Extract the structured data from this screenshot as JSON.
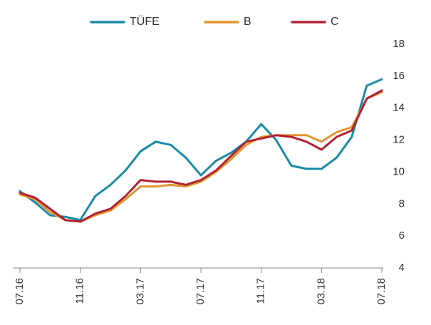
{
  "chart_data": {
    "type": "line",
    "title": "",
    "xlabel": "",
    "ylabel": "",
    "ylim": [
      4,
      18
    ],
    "y_ticks": [
      4,
      6,
      8,
      10,
      12,
      14,
      16,
      18
    ],
    "y_axis_side": "right",
    "x_tick_labels": [
      "07.16",
      "11.16",
      "03.17",
      "07.17",
      "11.17",
      "03.18",
      "07.18"
    ],
    "x": [
      "07.16",
      "08.16",
      "09.16",
      "10.16",
      "11.16",
      "12.16",
      "01.17",
      "02.17",
      "03.17",
      "04.17",
      "05.17",
      "06.17",
      "07.17",
      "08.17",
      "09.17",
      "10.17",
      "11.17",
      "12.17",
      "01.18",
      "02.18",
      "03.18",
      "04.18",
      "05.18",
      "06.18",
      "07.18"
    ],
    "legend_position": "top",
    "grid": false,
    "series": [
      {
        "name": "TÜFE",
        "color": "#1a8aa6",
        "values": [
          8.8,
          8.1,
          7.3,
          7.2,
          7.0,
          8.5,
          9.2,
          10.1,
          11.3,
          11.9,
          11.7,
          10.9,
          9.8,
          10.7,
          11.2,
          11.9,
          13.0,
          12.0,
          10.4,
          10.2,
          10.2,
          10.9,
          12.2,
          15.4,
          15.8
        ]
      },
      {
        "name": "B",
        "color": "#e0962e",
        "values": [
          8.6,
          8.3,
          7.5,
          7.0,
          6.9,
          7.3,
          7.6,
          8.3,
          9.1,
          9.1,
          9.2,
          9.1,
          9.4,
          10.0,
          10.8,
          11.7,
          12.2,
          12.3,
          12.3,
          12.3,
          11.9,
          12.5,
          12.8,
          14.6,
          15.0
        ]
      },
      {
        "name": "C",
        "color": "#b22234",
        "values": [
          8.7,
          8.4,
          7.7,
          7.0,
          6.9,
          7.4,
          7.7,
          8.5,
          9.5,
          9.4,
          9.4,
          9.2,
          9.5,
          10.1,
          11.0,
          11.9,
          12.1,
          12.3,
          12.2,
          11.9,
          11.4,
          12.2,
          12.6,
          14.6,
          15.1
        ]
      }
    ]
  }
}
